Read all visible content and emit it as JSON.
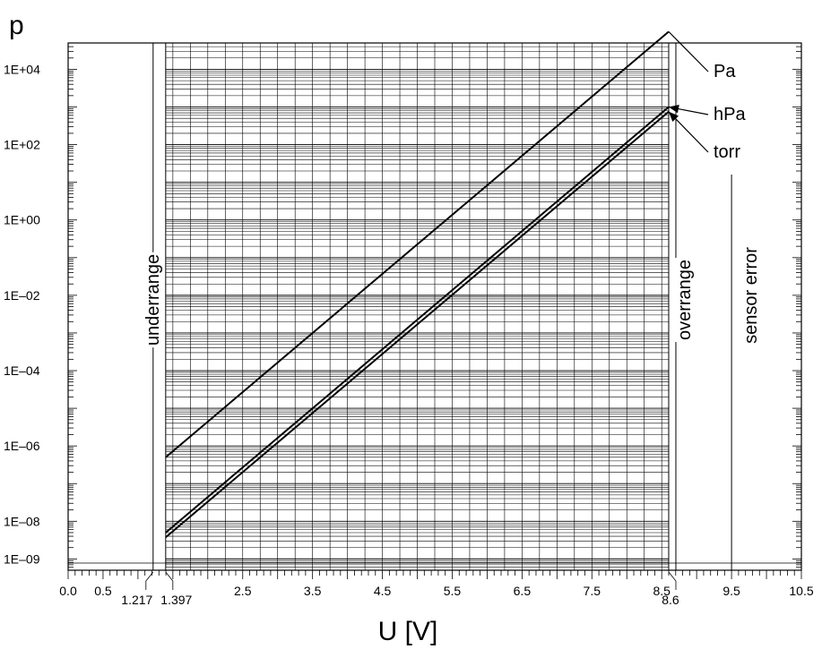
{
  "chart_data": {
    "type": "line",
    "ylabel": "p",
    "xlabel": "U [V]",
    "xlim": [
      0.0,
      10.5
    ],
    "ylim_log10": [
      -9.3,
      4.7
    ],
    "yscale": "log",
    "grid": true,
    "x_ticks": [
      {
        "value": 0.0,
        "label": "0.0"
      },
      {
        "value": 0.5,
        "label": "0.5"
      },
      {
        "value": 2.5,
        "label": "2.5"
      },
      {
        "value": 3.5,
        "label": "3.5"
      },
      {
        "value": 4.5,
        "label": "4.5"
      },
      {
        "value": 5.5,
        "label": "5.5"
      },
      {
        "value": 6.5,
        "label": "6.5"
      },
      {
        "value": 7.5,
        "label": "7.5"
      },
      {
        "value": 8.5,
        "label": "8.5"
      },
      {
        "value": 9.5,
        "label": "9.5"
      },
      {
        "value": 10.5,
        "label": "10.5"
      }
    ],
    "x_callouts": [
      {
        "value": 1.217,
        "label": "1.217"
      },
      {
        "value": 1.397,
        "label": "1.397"
      },
      {
        "value": 8.6,
        "label": "8.6"
      }
    ],
    "y_ticks": [
      {
        "exp": 4,
        "label": "1E+04"
      },
      {
        "exp": 2,
        "label": "1E+02"
      },
      {
        "exp": 0,
        "label": "1E+00"
      },
      {
        "exp": -2,
        "label": "1E–02"
      },
      {
        "exp": -4,
        "label": "1E–04"
      },
      {
        "exp": -6,
        "label": "1E–06"
      },
      {
        "exp": -8,
        "label": "1E–08"
      },
      {
        "exp": -9,
        "label": "1E–09"
      }
    ],
    "series": [
      {
        "name": "Pa",
        "x": [
          1.397,
          8.6
        ],
        "y": [
          5e-07,
          100000.0
        ]
      },
      {
        "name": "hPa",
        "x": [
          1.397,
          8.6
        ],
        "y": [
          5e-09,
          1000.0
        ]
      },
      {
        "name": "torr",
        "x": [
          1.397,
          8.6
        ],
        "y": [
          3.75e-09,
          750
        ]
      }
    ],
    "regions": [
      {
        "label": "underrange",
        "value": 1.217
      },
      {
        "label": "overrange",
        "value": 8.6
      },
      {
        "label": "sensor error",
        "value": 9.5
      }
    ]
  }
}
